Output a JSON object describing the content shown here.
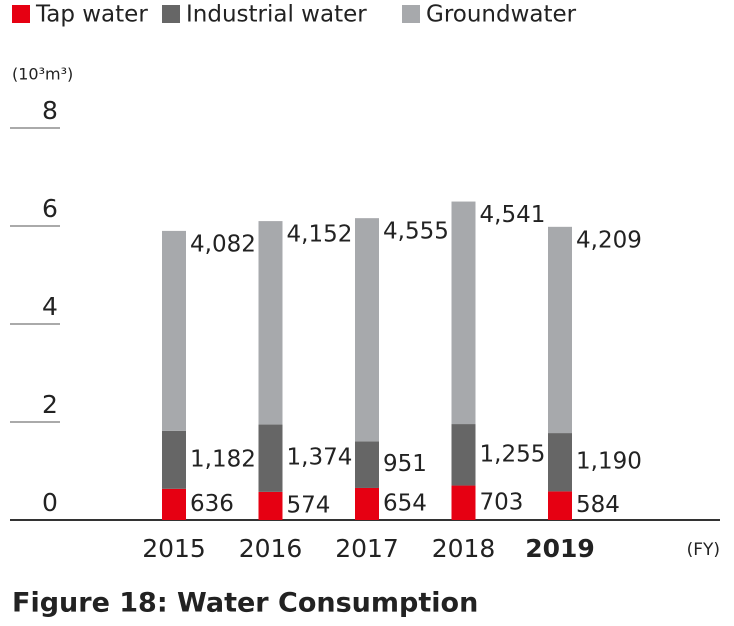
{
  "chart_data": {
    "type": "stacked_bar",
    "title": "Figure 18: Water Consumption",
    "y_unit": "(10³m³)",
    "x_unit": "(FY)",
    "categories": [
      "2015",
      "2016",
      "2017",
      "2018",
      "2019"
    ],
    "highlight_index": 4,
    "series": [
      {
        "name": "Tap water",
        "color": "#e60012",
        "values": [
          0.636,
          0.574,
          0.654,
          0.703,
          0.584
        ],
        "value_labels": [
          "636",
          "574",
          "654",
          "703",
          "584"
        ]
      },
      {
        "name": "Industrial water",
        "color": "#666666",
        "values": [
          1.182,
          1.374,
          0.951,
          1.255,
          1.19
        ],
        "value_labels": [
          "1,182",
          "1,374",
          "951",
          "1,255",
          "1,190"
        ]
      },
      {
        "name": "Groundwater",
        "color": "#a7a9ac",
        "values": [
          4.082,
          4.152,
          4.555,
          4.541,
          4.209
        ],
        "value_labels": [
          "4,082",
          "4,152",
          "4,555",
          "4,541",
          "4,209"
        ]
      }
    ],
    "ylim": [
      0,
      8
    ],
    "yticks": [
      0,
      2,
      4,
      6,
      8
    ]
  }
}
